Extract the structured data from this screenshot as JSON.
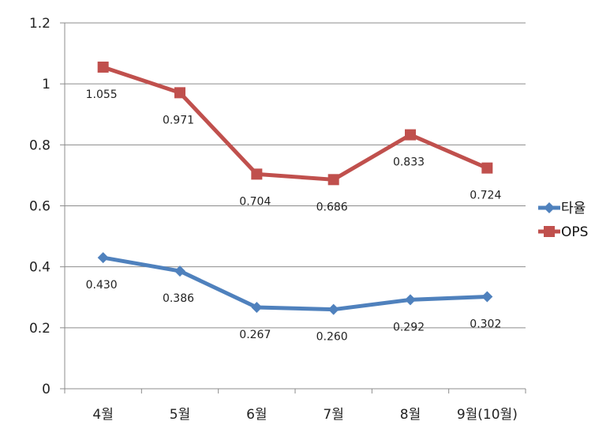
{
  "chart_data": {
    "type": "line",
    "title": "",
    "xlabel": "",
    "ylabel": "",
    "categories": [
      "4월",
      "5월",
      "6월",
      "7월",
      "8월",
      "9월(10월)"
    ],
    "ylim": [
      0,
      1.2
    ],
    "yticks": [
      "0",
      "0.2",
      "0.4",
      "0.6",
      "0.8",
      "1",
      "1.2"
    ],
    "grid": true,
    "legend_position": "right",
    "series": [
      {
        "name": "타율",
        "color": "#4F81BD",
        "marker": "diamond",
        "values": [
          0.43,
          0.386,
          0.267,
          0.26,
          0.292,
          0.302
        ],
        "labels": [
          "0.430",
          "0.386",
          "0.267",
          "0.260",
          "0.292",
          "0.302"
        ]
      },
      {
        "name": "OPS",
        "color": "#C0504D",
        "marker": "square",
        "values": [
          1.055,
          0.971,
          0.704,
          0.686,
          0.833,
          0.724
        ],
        "labels": [
          "1.055",
          "0.971",
          "0.704",
          "0.686",
          "0.833",
          "0.724"
        ]
      }
    ]
  }
}
